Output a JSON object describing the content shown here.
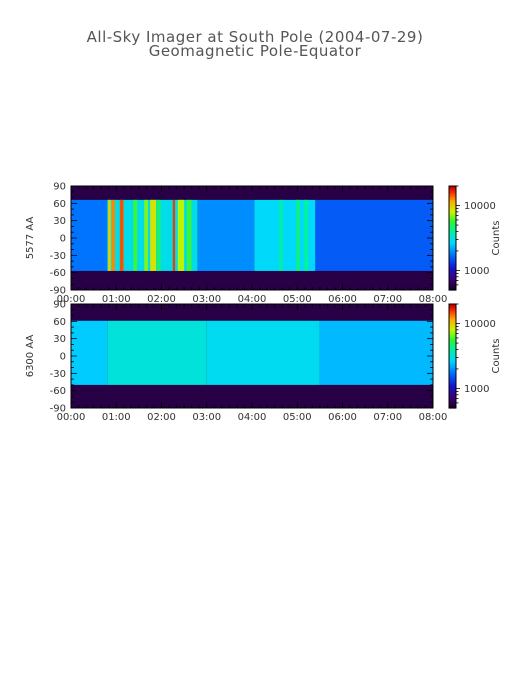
{
  "header": {
    "title": "All-Sky Imager at South Pole (2004-07-29)",
    "subtitle": "Geomagnetic Pole-Equator"
  },
  "chart_data": [
    {
      "type": "heatmap",
      "ylabel": "5577 AA",
      "x_ticks": [
        "00:00",
        "01:00",
        "02:00",
        "03:00",
        "04:00",
        "05:00",
        "06:00",
        "07:00",
        "08:00"
      ],
      "x_range_hours": [
        0,
        8
      ],
      "y_ticks": [
        "90",
        "60",
        "30",
        "0",
        "-30",
        "-60",
        "-90"
      ],
      "y_range": [
        -90,
        90
      ],
      "colorbar": {
        "label": "Counts",
        "scale": "log",
        "ticks": [
          "10000",
          "1000"
        ],
        "range": [
          500,
          20000
        ]
      },
      "data_lat_range": [
        -57,
        66
      ],
      "background_level": 600,
      "bright_bands": [
        {
          "start_h": 0.82,
          "end_h": 0.88,
          "level": 10000
        },
        {
          "start_h": 0.9,
          "end_h": 0.97,
          "level": 13000
        },
        {
          "start_h": 1.08,
          "end_h": 1.16,
          "level": 15000
        },
        {
          "start_h": 1.38,
          "end_h": 1.46,
          "level": 6000
        },
        {
          "start_h": 1.62,
          "end_h": 1.7,
          "level": 7000
        },
        {
          "start_h": 1.75,
          "end_h": 1.88,
          "level": 9000
        },
        {
          "start_h": 1.9,
          "end_h": 1.98,
          "level": 5000
        },
        {
          "start_h": 2.25,
          "end_h": 2.3,
          "level": 16000
        },
        {
          "start_h": 2.36,
          "end_h": 2.5,
          "level": 8000
        },
        {
          "start_h": 2.56,
          "end_h": 2.66,
          "level": 6000
        },
        {
          "start_h": 4.6,
          "end_h": 4.68,
          "level": 4000
        },
        {
          "start_h": 4.98,
          "end_h": 5.06,
          "level": 4500
        },
        {
          "start_h": 5.15,
          "end_h": 5.24,
          "level": 4000
        }
      ],
      "baseline_segments": [
        {
          "start_h": 0.0,
          "end_h": 0.8,
          "level": 1800
        },
        {
          "start_h": 0.8,
          "end_h": 2.8,
          "level": 3000
        },
        {
          "start_h": 2.8,
          "end_h": 4.05,
          "level": 2000
        },
        {
          "start_h": 4.05,
          "end_h": 5.4,
          "level": 2800
        },
        {
          "start_h": 5.4,
          "end_h": 8.0,
          "level": 1600
        }
      ]
    },
    {
      "type": "heatmap",
      "ylabel": "6300 AA",
      "x_ticks": [
        "00:00",
        "01:00",
        "02:00",
        "03:00",
        "04:00",
        "05:00",
        "06:00",
        "07:00",
        "08:00"
      ],
      "x_range_hours": [
        0,
        8
      ],
      "y_ticks": [
        "90",
        "60",
        "30",
        "0",
        "-30",
        "-60",
        "-90"
      ],
      "y_range": [
        -90,
        90
      ],
      "colorbar": {
        "label": "Counts",
        "scale": "log",
        "ticks": [
          "10000",
          "1000"
        ],
        "range": [
          500,
          20000
        ]
      },
      "data_lat_range": [
        -50,
        61
      ],
      "background_level": 600,
      "bright_bands": [],
      "baseline_segments": [
        {
          "start_h": 0.0,
          "end_h": 0.8,
          "level": 2600
        },
        {
          "start_h": 0.8,
          "end_h": 3.0,
          "level": 3200
        },
        {
          "start_h": 3.0,
          "end_h": 5.5,
          "level": 2900
        },
        {
          "start_h": 5.5,
          "end_h": 8.0,
          "level": 2400
        }
      ]
    }
  ]
}
